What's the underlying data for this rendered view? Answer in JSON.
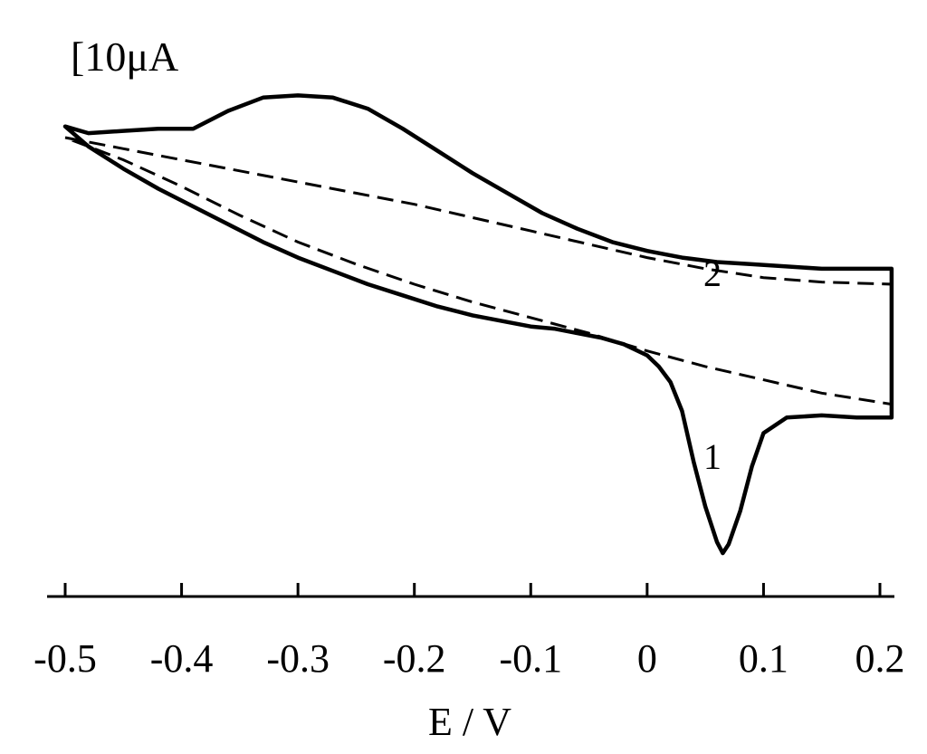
{
  "chart_data": {
    "type": "line",
    "title": "",
    "xlabel": "E / V",
    "ylabel": "",
    "scale_bar": "[10μA",
    "xlim": [
      -0.5,
      0.2
    ],
    "ylim": [
      -18,
      2
    ],
    "x_ticks": [
      -0.5,
      -0.4,
      -0.3,
      -0.2,
      -0.1,
      0,
      0.1,
      0.2
    ],
    "x_tick_labels": [
      "-0.5",
      "-0.4",
      "-0.3",
      "-0.2",
      "-0.1",
      "0",
      "0.1",
      "0.2"
    ],
    "grid": false,
    "legend": "none",
    "series": [
      {
        "label": "1",
        "style": "solid",
        "x": [
          -0.5,
          -0.48,
          -0.45,
          -0.42,
          -0.39,
          -0.36,
          -0.33,
          -0.3,
          -0.27,
          -0.24,
          -0.21,
          -0.18,
          -0.15,
          -0.12,
          -0.09,
          -0.06,
          -0.03,
          0.0,
          0.03,
          0.06,
          0.09,
          0.12,
          0.15,
          0.18,
          0.21,
          0.21,
          0.18,
          0.15,
          0.12,
          0.1,
          0.09,
          0.08,
          0.07,
          0.065,
          0.06,
          0.05,
          0.04,
          0.03,
          0.02,
          0.01,
          0.0,
          -0.02,
          -0.04,
          -0.06,
          -0.08,
          -0.1,
          -0.12,
          -0.15,
          -0.18,
          -0.21,
          -0.24,
          -0.27,
          -0.3,
          -0.33,
          -0.36,
          -0.39,
          -0.42,
          -0.45,
          -0.48,
          -0.5
        ],
        "y": [
          0.3,
          0.0,
          0.1,
          0.2,
          0.2,
          1.0,
          1.6,
          1.7,
          1.6,
          1.1,
          0.2,
          -0.8,
          -1.8,
          -2.7,
          -3.6,
          -4.3,
          -4.9,
          -5.3,
          -5.6,
          -5.8,
          -5.9,
          -6.0,
          -6.1,
          -6.1,
          -6.1,
          -12.8,
          -12.8,
          -12.7,
          -12.8,
          -13.5,
          -15.0,
          -17.0,
          -18.5,
          -18.9,
          -18.4,
          -16.8,
          -14.8,
          -12.5,
          -11.2,
          -10.5,
          -10.0,
          -9.5,
          -9.2,
          -9.0,
          -8.8,
          -8.7,
          -8.5,
          -8.2,
          -7.8,
          -7.3,
          -6.8,
          -6.2,
          -5.6,
          -4.9,
          -4.1,
          -3.3,
          -2.5,
          -1.6,
          -0.6,
          0.3
        ]
      },
      {
        "label": "2",
        "style": "dashed",
        "x": [
          -0.5,
          -0.45,
          -0.4,
          -0.35,
          -0.3,
          -0.25,
          -0.2,
          -0.15,
          -0.1,
          -0.05,
          0.0,
          0.05,
          0.1,
          0.15,
          0.21,
          0.21,
          0.15,
          0.1,
          0.05,
          0.0,
          -0.05,
          -0.1,
          -0.15,
          -0.2,
          -0.25,
          -0.3,
          -0.35,
          -0.4,
          -0.45,
          -0.5
        ],
        "y": [
          -0.2,
          -0.7,
          -1.2,
          -1.7,
          -2.2,
          -2.7,
          -3.2,
          -3.8,
          -4.4,
          -5.0,
          -5.6,
          -6.1,
          -6.5,
          -6.7,
          -6.8,
          -12.2,
          -11.7,
          -11.1,
          -10.5,
          -9.8,
          -9.0,
          -8.3,
          -7.6,
          -6.8,
          -5.9,
          -4.9,
          -3.7,
          -2.4,
          -1.2,
          -0.2
        ]
      }
    ]
  }
}
